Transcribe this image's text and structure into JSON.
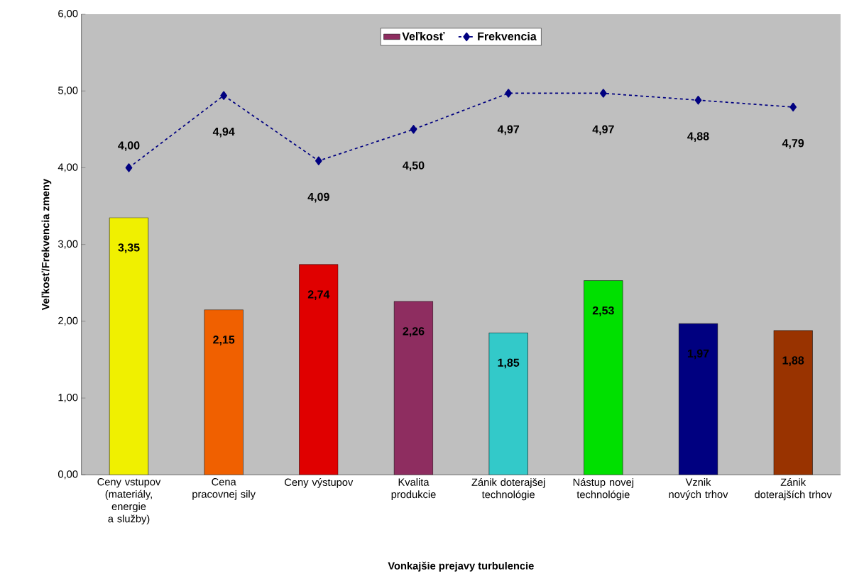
{
  "chart_data": {
    "type": "bar",
    "xlabel": "Vonkajšie prejavy turbulencie",
    "ylabel": "Veľkosť/Frekvencia zmeny",
    "categories": [
      "Ceny vstupov (materiály, energie a služby)",
      "Cena pracovnej sily",
      "Ceny výstupov",
      "Kvalita produkcie",
      "Zánik doterajšej technológie",
      "Nástup novej technológie",
      "Vznik nových trhov",
      "Zánik doterajších trhov"
    ],
    "series": [
      {
        "name": "Veľkosť",
        "color": "#8e2d60",
        "colors": [
          "#f0f000",
          "#f06000",
          "#e00000",
          "#8e2d60",
          "#33c9c9",
          "#00e000",
          "#000080",
          "#993300"
        ],
        "values": [
          3.35,
          2.15,
          2.74,
          2.26,
          1.85,
          2.53,
          1.97,
          1.88
        ],
        "value_labels": [
          "3,35",
          "2,15",
          "2,74",
          "2,26",
          "1,85",
          "2,53",
          "1,97",
          "1,88"
        ]
      },
      {
        "name": "Frekvencia",
        "type": "line",
        "color": "#000080",
        "marker": "diamond",
        "line_style": "dashed",
        "values": [
          4.0,
          4.94,
          4.09,
          4.5,
          4.97,
          4.97,
          4.88,
          4.79
        ],
        "value_labels": [
          "4,00",
          "4,94",
          "4,09",
          "4,50",
          "4,97",
          "4,97",
          "4,88",
          "4,79"
        ]
      }
    ],
    "ylim": [
      0,
      6
    ],
    "yticks": [
      {
        "value": 0,
        "label": "0,00"
      },
      {
        "value": 1,
        "label": "1,00"
      },
      {
        "value": 2,
        "label": "2,00"
      },
      {
        "value": 3,
        "label": "3,00"
      },
      {
        "value": 4,
        "label": "4,00"
      },
      {
        "value": 5,
        "label": "5,00"
      },
      {
        "value": 6,
        "label": "6,00"
      }
    ],
    "legend": "top",
    "grid": false
  }
}
